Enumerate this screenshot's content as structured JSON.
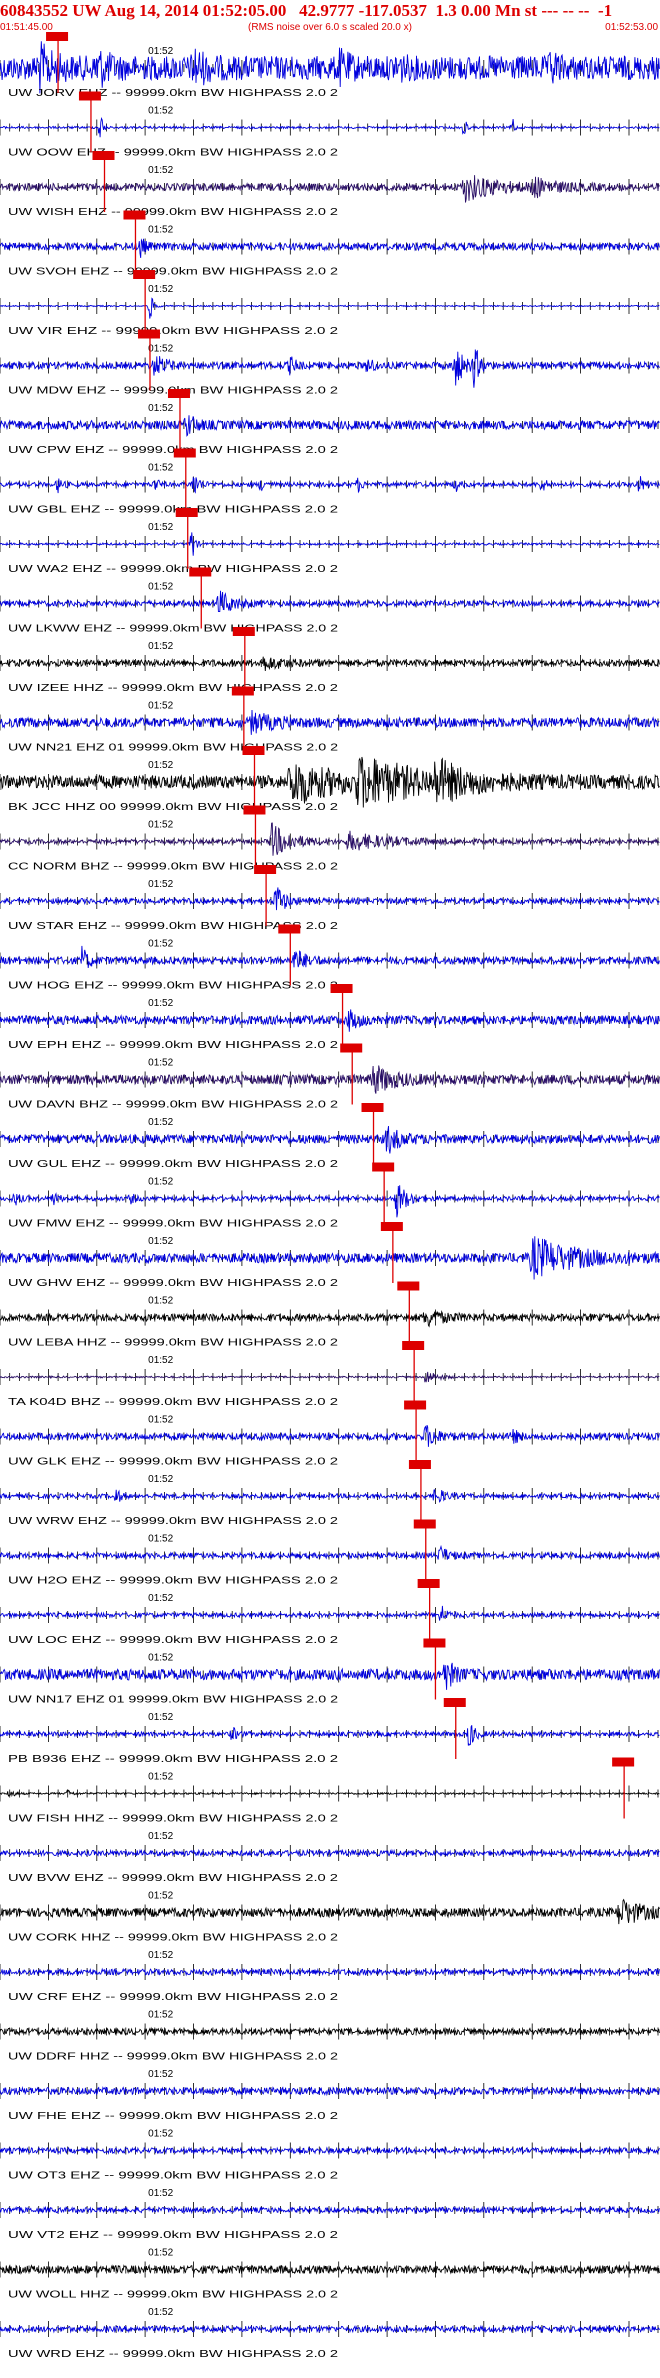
{
  "header": {
    "title": "60843552 UW Aug 14, 2014 01:52:05.00   42.9777 -117.0537  1.3 0.00 Mn st --- -- --  -1",
    "start_time": "01:51:45.00",
    "note": "(RMS noise over 6.0 s scaled 20.0 x)",
    "end_time": "01:52:53.00"
  },
  "chart_data": {
    "type": "line",
    "title": "60843552 UW Aug 14, 2014 01:52:05.00   42.9777 -117.0537  1.3 0.00 Mn st --- -- --  -1",
    "x_range_seconds": [
      0,
      68
    ],
    "minute_marker": "01:52",
    "minute_marker_seconds": 15,
    "pick_color": "#dd0000",
    "traces": [
      {
        "label": "UW JORV EHZ -- 99999.0km BW  HIGHPASS  2.0  2",
        "color": "#0000dd",
        "pick_s": 6.0,
        "noise": 0.55,
        "bursts": [
          [
            4,
            0.9,
            1.2
          ],
          [
            10,
            0.7,
            1
          ],
          [
            20,
            0.7,
            1
          ],
          [
            35,
            0.5,
            1
          ],
          [
            41,
            0.5,
            0.6
          ],
          [
            57,
            0.6,
            0.5
          ]
        ]
      },
      {
        "label": "UW OOW EHZ -- 99999.0km BW  HIGHPASS  2.0  2",
        "color": "#0000dd",
        "pick_s": 9.4,
        "noise": 0.05,
        "bursts": [
          [
            10.4,
            0.9,
            0.2
          ],
          [
            48,
            0.9,
            0.15
          ],
          [
            53,
            0.6,
            0.15
          ]
        ]
      },
      {
        "label": "UW WISH EHZ -- 99999.0km BW  HIGHPASS  2.0  2",
        "color": "#2a0f66",
        "pick_s": 10.8,
        "noise": 0.16,
        "bursts": [
          [
            48,
            0.6,
            3
          ],
          [
            55,
            0.4,
            2
          ]
        ]
      },
      {
        "label": "UW SVOH EHZ -- 99999.0km BW  HIGHPASS  2.0  2",
        "color": "#0000dd",
        "pick_s": 14.0,
        "noise": 0.16,
        "bursts": [
          [
            14.5,
            0.5,
            0.4
          ]
        ]
      },
      {
        "label": "UW VIR EHZ -- 99999.0km BW  HIGHPASS  2.0  2",
        "color": "#0000dd",
        "pick_s": 15.0,
        "noise": 0.03,
        "bursts": [
          [
            15.5,
            0.7,
            0.3
          ]
        ]
      },
      {
        "label": "UW MDW EHZ -- 99999.0km BW  HIGHPASS  2.0  2",
        "color": "#0000dd",
        "pick_s": 15.5,
        "noise": 0.15,
        "bursts": [
          [
            16,
            0.5,
            1
          ],
          [
            30,
            0.4,
            0.5
          ],
          [
            38,
            0.4,
            0.5
          ],
          [
            47,
            1.0,
            0.8
          ],
          [
            49,
            0.9,
            0.5
          ]
        ]
      },
      {
        "label": "UW CPW EHZ -- 99999.0km BW  HIGHPASS  2.0  2",
        "color": "#0000dd",
        "pick_s": 18.6,
        "noise": 0.2,
        "bursts": [
          [
            19.3,
            0.5,
            0.8
          ]
        ]
      },
      {
        "label": "UW GBL EHZ -- 99999.0km BW  HIGHPASS  2.0  2",
        "color": "#0000dd",
        "pick_s": 19.2,
        "noise": 0.1,
        "bursts": [
          [
            6,
            0.35,
            0.4
          ],
          [
            16,
            0.3,
            0.4
          ],
          [
            20,
            0.6,
            0.5
          ],
          [
            27,
            0.3,
            0.4
          ],
          [
            37,
            0.3,
            0.4
          ],
          [
            47,
            0.35,
            0.4
          ],
          [
            56,
            0.35,
            0.4
          ],
          [
            66,
            0.5,
            0.4
          ]
        ]
      },
      {
        "label": "UW WA2 EHZ -- 99999.0km BW  HIGHPASS  2.0  2",
        "color": "#0000dd",
        "pick_s": 19.4,
        "noise": 0.05,
        "bursts": [
          [
            19.8,
            0.9,
            0.3
          ]
        ]
      },
      {
        "label": "UW LKWW EHZ -- 99999.0km BW  HIGHPASS  2.0  2",
        "color": "#0000dd",
        "pick_s": 20.8,
        "noise": 0.12,
        "bursts": [
          [
            22.5,
            0.6,
            1.5
          ]
        ]
      },
      {
        "label": "UW IZEE HHZ -- 99999.0km BW  HIGHPASS  2.0  2",
        "color": "#000000",
        "pick_s": 25.3,
        "noise": 0.14,
        "bursts": [
          [
            27,
            0.3,
            2
          ]
        ]
      },
      {
        "label": "UW NN21 EHZ 01 99999.0km BW  HIGHPASS  2.0  2",
        "color": "#0000dd",
        "pick_s": 25.2,
        "noise": 0.22,
        "bursts": [
          [
            26,
            0.4,
            2
          ]
        ]
      },
      {
        "label": "BK JCC HHZ 00 99999.0km BW  HIGHPASS  2.0  2",
        "color": "#000000",
        "pick_s": 26.3,
        "noise": 0.3,
        "bursts": [
          [
            30,
            1.0,
            4
          ],
          [
            37,
            1.0,
            6
          ],
          [
            45,
            0.7,
            3
          ]
        ]
      },
      {
        "label": "CC NORM BHZ -- 99999.0km BW  HIGHPASS  2.0  2",
        "color": "#2a0f66",
        "pick_s": 26.4,
        "noise": 0.1,
        "bursts": [
          [
            28,
            0.8,
            2
          ],
          [
            36,
            0.4,
            4
          ]
        ]
      },
      {
        "label": "UW STAR EHZ -- 99999.0km BW  HIGHPASS  2.0  2",
        "color": "#0000dd",
        "pick_s": 27.5,
        "noise": 0.12,
        "bursts": [
          [
            28.5,
            0.8,
            0.8
          ]
        ]
      },
      {
        "label": "UW HOG EHZ -- 99999.0km BW  HIGHPASS  2.0  2",
        "color": "#0000dd",
        "pick_s": 30.0,
        "noise": 0.16,
        "bursts": [
          [
            8.5,
            0.6,
            0.6
          ],
          [
            30.5,
            0.5,
            1
          ]
        ]
      },
      {
        "label": "UW EPH EHZ -- 99999.0km BW  HIGHPASS  2.0  2",
        "color": "#0000dd",
        "pick_s": 35.4,
        "noise": 0.2,
        "bursts": [
          [
            36,
            0.4,
            1
          ]
        ]
      },
      {
        "label": "UW DAVN BHZ -- 99999.0km BW  HIGHPASS  2.0  2",
        "color": "#2a0f66",
        "pick_s": 36.4,
        "noise": 0.22,
        "bursts": [
          [
            38.5,
            0.6,
            2
          ]
        ]
      },
      {
        "label": "UW GUL EHZ -- 99999.0km BW  HIGHPASS  2.0  2",
        "color": "#0000dd",
        "pick_s": 38.6,
        "noise": 0.2,
        "bursts": [
          [
            40,
            0.6,
            1.2
          ]
        ]
      },
      {
        "label": "UW FMW EHZ -- 99999.0km BW  HIGHPASS  2.0  2",
        "color": "#0000dd",
        "pick_s": 39.7,
        "noise": 0.1,
        "bursts": [
          [
            1.5,
            0.3,
            0.5
          ],
          [
            5.5,
            0.3,
            0.5
          ],
          [
            13.5,
            0.2,
            0.5
          ],
          [
            41,
            0.8,
            1
          ]
        ]
      },
      {
        "label": "UW GHW EHZ -- 99999.0km BW  HIGHPASS  2.0  2",
        "color": "#0000dd",
        "pick_s": 40.6,
        "noise": 0.22,
        "bursts": [
          [
            55,
            0.9,
            4
          ]
        ]
      },
      {
        "label": "UW LEBA HHZ -- 99999.0km BW  HIGHPASS  2.0  2",
        "color": "#000000",
        "pick_s": 42.3,
        "noise": 0.16,
        "bursts": [
          [
            44,
            0.4,
            1.5
          ]
        ]
      },
      {
        "label": "TA K04D BHZ -- 99999.0km BW  HIGHPASS  2.0  2",
        "color": "#2a0f66",
        "pick_s": 42.8,
        "noise": 0.04,
        "bursts": [
          [
            44,
            0.35,
            1
          ]
        ]
      },
      {
        "label": "UW GLK EHZ -- 99999.0km BW  HIGHPASS  2.0  2",
        "color": "#0000dd",
        "pick_s": 43.0,
        "noise": 0.15,
        "bursts": [
          [
            44,
            0.5,
            1
          ],
          [
            53,
            0.4,
            0.4
          ]
        ]
      },
      {
        "label": "UW WRW EHZ -- 99999.0km BW  HIGHPASS  2.0  2",
        "color": "#0000dd",
        "pick_s": 43.5,
        "noise": 0.1,
        "bursts": [
          [
            12,
            0.4,
            0.4
          ],
          [
            45,
            0.4,
            0.8
          ]
        ]
      },
      {
        "label": "UW H2O EHZ -- 99999.0km BW  HIGHPASS  2.0  2",
        "color": "#0000dd",
        "pick_s": 44.0,
        "noise": 0.12,
        "bursts": [
          [
            45.5,
            0.4,
            0.8
          ]
        ]
      },
      {
        "label": "UW LOC EHZ -- 99999.0km BW  HIGHPASS  2.0  2",
        "color": "#0000dd",
        "pick_s": 44.4,
        "noise": 0.1,
        "bursts": [
          [
            45.5,
            0.5,
            0.6
          ]
        ]
      },
      {
        "label": "UW NN17 EHZ 01 99999.0km BW  HIGHPASS  2.0  2",
        "color": "#0000dd",
        "pick_s": 45.0,
        "noise": 0.25,
        "bursts": [
          [
            46,
            0.7,
            0.8
          ]
        ]
      },
      {
        "label": "PB B936 EHZ -- 99999.0km BW  HIGHPASS  2.0  2",
        "color": "#0000dd",
        "pick_s": 47.1,
        "noise": 0.1,
        "bursts": [
          [
            48.5,
            0.7,
            0.5
          ],
          [
            24,
            0.3,
            0.5
          ]
        ]
      },
      {
        "label": "UW FISH HHZ -- 99999.0km BW  HIGHPASS  2.0  2",
        "color": "#000000",
        "pick_s": 64.5,
        "noise": 0.04,
        "bursts": [
          [
            1,
            0.25,
            0.4
          ],
          [
            7,
            0.15,
            0.5
          ]
        ]
      },
      {
        "label": "UW BVW EHZ -- 99999.0km BW  HIGHPASS  2.0  2",
        "color": "#0000dd",
        "pick_s": null,
        "noise": 0.12,
        "bursts": []
      },
      {
        "label": "UW CORK HHZ -- 99999.0km BW  HIGHPASS  2.0  2",
        "color": "#000000",
        "pick_s": null,
        "noise": 0.2,
        "bursts": [
          [
            64,
            0.6,
            2
          ]
        ]
      },
      {
        "label": "UW CRF EHZ -- 99999.0km BW  HIGHPASS  2.0  2",
        "color": "#0000dd",
        "pick_s": null,
        "noise": 0.13,
        "bursts": []
      },
      {
        "label": "UW DDRF HHZ -- 99999.0km BW  HIGHPASS  2.0  2",
        "color": "#000000",
        "pick_s": null,
        "noise": 0.14,
        "bursts": []
      },
      {
        "label": "UW FHE EHZ -- 99999.0km BW  HIGHPASS  2.0  2",
        "color": "#0000dd",
        "pick_s": null,
        "noise": 0.16,
        "bursts": []
      },
      {
        "label": "UW OT3 EHZ -- 99999.0km BW  HIGHPASS  2.0  2",
        "color": "#0000dd",
        "pick_s": null,
        "noise": 0.12,
        "bursts": []
      },
      {
        "label": "UW VT2 EHZ -- 99999.0km BW  HIGHPASS  2.0  2",
        "color": "#0000dd",
        "pick_s": null,
        "noise": 0.12,
        "bursts": []
      },
      {
        "label": "UW WOLL HHZ -- 99999.0km BW  HIGHPASS  2.0  2",
        "color": "#000000",
        "pick_s": null,
        "noise": 0.18,
        "bursts": []
      },
      {
        "label": "UW WRD EHZ -- 99999.0km BW  HIGHPASS  2.0  2",
        "color": "#0000dd",
        "pick_s": null,
        "noise": 0.13,
        "bursts": []
      }
    ]
  }
}
